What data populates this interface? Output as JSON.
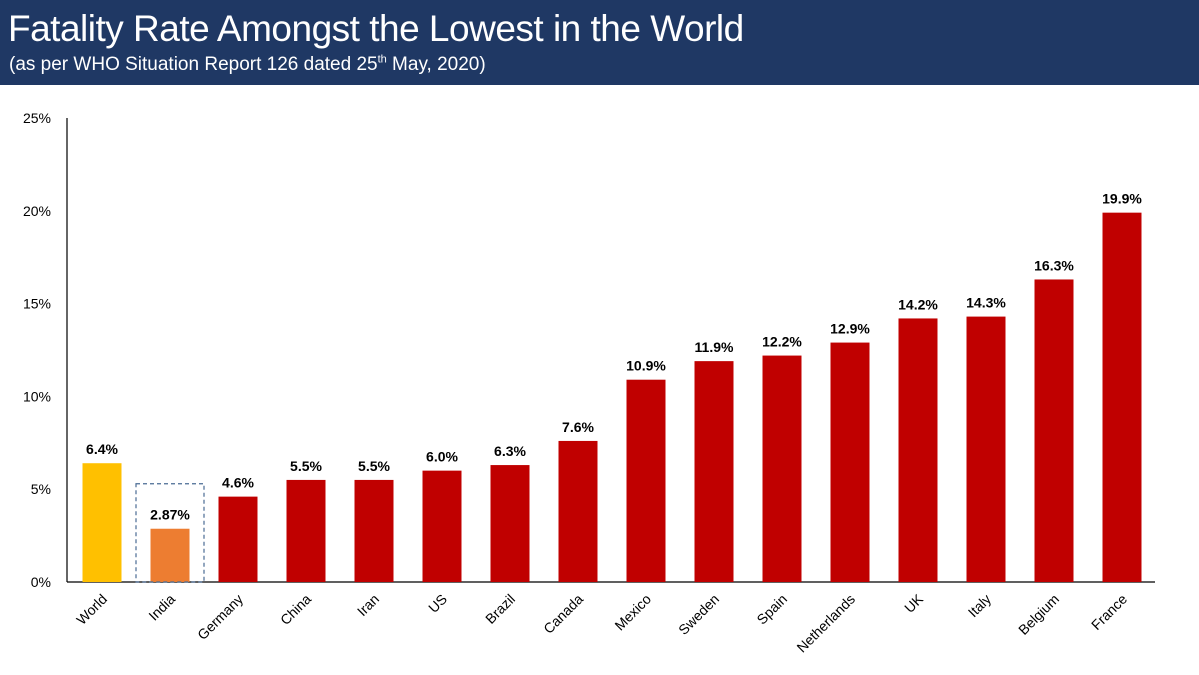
{
  "header": {
    "title": "Fatality Rate Amongst the Lowest in the World",
    "subtitle_prefix": "(as per WHO Situation Report 126 dated 25",
    "subtitle_sup": "th",
    "subtitle_suffix": " May, 2020)"
  },
  "chart_data": {
    "type": "bar",
    "title": "Fatality Rate Amongst the Lowest in the World",
    "xlabel": "",
    "ylabel": "",
    "ylim": [
      0,
      25
    ],
    "y_ticks": [
      0,
      5,
      10,
      15,
      20,
      25
    ],
    "y_tick_labels": [
      "0%",
      "5%",
      "10%",
      "15%",
      "20%",
      "25%"
    ],
    "grid": false,
    "categories": [
      "World",
      "India",
      "Germany",
      "China",
      "Iran",
      "US",
      "Brazil",
      "Canada",
      "Mexico",
      "Sweden",
      "Spain",
      "Netherlands",
      "UK",
      "Italy",
      "Belgium",
      "France"
    ],
    "values": [
      6.4,
      2.87,
      4.6,
      5.5,
      5.5,
      6.0,
      6.3,
      7.6,
      10.9,
      11.9,
      12.2,
      12.9,
      14.2,
      14.3,
      16.3,
      19.9
    ],
    "value_labels": [
      "6.4%",
      "2.87%",
      "4.6%",
      "5.5%",
      "5.5%",
      "6.0%",
      "6.3%",
      "7.6%",
      "10.9%",
      "11.9%",
      "12.2%",
      "12.9%",
      "14.2%",
      "14.3%",
      "16.3%",
      "19.9%"
    ],
    "colors": {
      "World": "#ffc000",
      "India": "#ed7d31",
      "default": "#c00000"
    },
    "highlight_category": "India",
    "highlight_border": "#4a6b94"
  }
}
